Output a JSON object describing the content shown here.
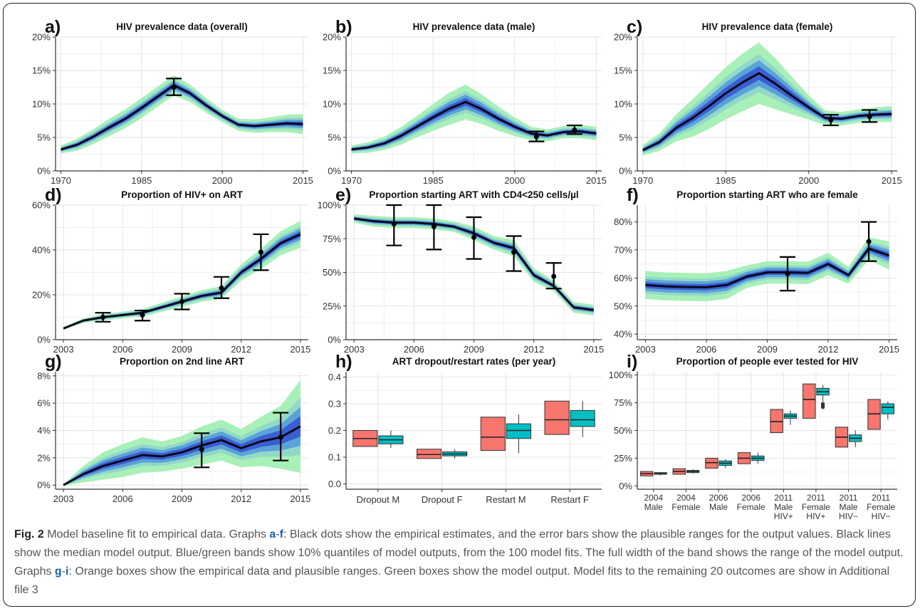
{
  "caption": {
    "fig_label": "Fig. 2",
    "part1": " Model baseline fit to empirical data. Graphs ",
    "ref1a": "a",
    "dash1": "-",
    "ref1b": "f",
    "part2": ": Black dots show the empirical estimates, and the error bars show the plausible ranges for the output values. Black lines show the median model output. Blue/green bands show 10% quantiles of model outputs, from the 100 model fits. The full width of the band shows the range of the model output. Graphs ",
    "ref2a": "g",
    "dash2": "-",
    "ref2b": "i",
    "part3": ": Orange boxes show the empirical data and plausible ranges. Green boxes show the model output. Model fits to the remaining 20 outcomes are show in Additional file 3"
  },
  "colors": {
    "median_line": "#08081e",
    "band_outer": "#a8f0b8",
    "band_inner": "#5aa3d8",
    "band_core": "#3a5fd0",
    "empirical_box": "#f8766d",
    "model_box": "#00bfc4",
    "grid": "#e3e3e3"
  },
  "chart_data": [
    {
      "id": "a",
      "letter": "a)",
      "title": "HIV prevalence data (overall)",
      "type": "line",
      "ylim": [
        0,
        20
      ],
      "yticks": [
        0,
        5,
        10,
        15,
        20
      ],
      "yticklabels": [
        "0%",
        "5%",
        "10%",
        "15%",
        "20%"
      ],
      "xlim": [
        1969,
        2016
      ],
      "xticks": [
        1970,
        1985,
        2000,
        2015
      ],
      "xticklabels": [
        "1970",
        "1985",
        "2000",
        "2015"
      ],
      "median": {
        "x": [
          1970,
          1973,
          1976,
          1979,
          1982,
          1985,
          1988,
          1991,
          1994,
          1997,
          2000,
          2003,
          2006,
          2009,
          2012,
          2015
        ],
        "y": [
          3.2,
          3.9,
          5.1,
          6.5,
          7.8,
          9.4,
          11.1,
          12.8,
          11.6,
          9.8,
          8.2,
          6.9,
          6.7,
          6.9,
          7.1,
          7.0
        ]
      },
      "band_halfwidth": [
        0.6,
        0.9,
        1.1,
        1.3,
        1.4,
        1.5,
        1.5,
        1.5,
        1.3,
        1.1,
        0.9,
        0.9,
        1.0,
        1.1,
        1.3,
        1.5
      ],
      "empirical": [
        {
          "x": 1991,
          "y": 12.5,
          "lo": 11.3,
          "hi": 13.8
        }
      ]
    },
    {
      "id": "b",
      "letter": "b)",
      "title": "HIV prevalence data (male)",
      "type": "line",
      "ylim": [
        0,
        20
      ],
      "yticks": [
        0,
        5,
        10,
        15,
        20
      ],
      "yticklabels": [
        "0%",
        "5%",
        "10%",
        "15%",
        "20%"
      ],
      "xlim": [
        1969,
        2016
      ],
      "xticks": [
        1970,
        1985,
        2000,
        2015
      ],
      "xticklabels": [
        "1970",
        "1985",
        "2000",
        "2015"
      ],
      "median": {
        "x": [
          1970,
          1973,
          1976,
          1979,
          1982,
          1985,
          1988,
          1991,
          1994,
          1997,
          2000,
          2003,
          2006,
          2009,
          2012,
          2015
        ],
        "y": [
          3.2,
          3.5,
          4.1,
          5.2,
          6.6,
          8.0,
          9.3,
          10.3,
          9.2,
          7.8,
          6.6,
          5.6,
          5.3,
          5.8,
          5.9,
          5.6
        ]
      },
      "band_halfwidth": [
        0.6,
        0.8,
        1.0,
        1.3,
        1.6,
        2.0,
        2.4,
        2.6,
        2.2,
        1.8,
        1.4,
        1.0,
        0.9,
        0.9,
        1.0,
        1.0
      ],
      "empirical": [
        {
          "x": 2004,
          "y": 5.1,
          "lo": 4.4,
          "hi": 5.9
        },
        {
          "x": 2011,
          "y": 6.1,
          "lo": 5.5,
          "hi": 6.8
        }
      ]
    },
    {
      "id": "c",
      "letter": "c)",
      "title": "HIV prevalence data (female)",
      "type": "line",
      "ylim": [
        0,
        20
      ],
      "yticks": [
        0,
        5,
        10,
        15,
        20
      ],
      "yticklabels": [
        "0%",
        "5%",
        "10%",
        "15%",
        "20%"
      ],
      "xlim": [
        1969,
        2016
      ],
      "xticks": [
        1970,
        1985,
        2000,
        2015
      ],
      "xticklabels": [
        "1970",
        "1985",
        "2000",
        "2015"
      ],
      "median": {
        "x": [
          1970,
          1973,
          1976,
          1979,
          1982,
          1985,
          1988,
          1991,
          1994,
          1997,
          2000,
          2003,
          2006,
          2009,
          2012,
          2015
        ],
        "y": [
          3.1,
          4.3,
          6.4,
          7.9,
          9.7,
          11.6,
          13.2,
          14.6,
          13.0,
          11.2,
          9.5,
          7.9,
          7.8,
          8.2,
          8.4,
          8.5
        ]
      },
      "band_halfwidth": [
        0.8,
        1.3,
        2.0,
        2.8,
        3.4,
        3.9,
        4.3,
        4.6,
        3.8,
        2.8,
        1.8,
        1.1,
        1.0,
        1.0,
        1.1,
        1.2
      ],
      "empirical": [
        {
          "x": 2004,
          "y": 7.6,
          "lo": 6.8,
          "hi": 8.4
        },
        {
          "x": 2011,
          "y": 8.1,
          "lo": 7.3,
          "hi": 9.1
        }
      ]
    },
    {
      "id": "d",
      "letter": "d)",
      "title": "Proportion of HIV+ on ART",
      "type": "line",
      "ylim": [
        0,
        60
      ],
      "yticks": [
        0,
        20,
        40,
        60
      ],
      "yticklabels": [
        "0%",
        "20%",
        "40%",
        "60%"
      ],
      "xlim": [
        2002.6,
        2015.4
      ],
      "xticks": [
        2003,
        2006,
        2009,
        2012,
        2015
      ],
      "xticklabels": [
        "2003",
        "2006",
        "2009",
        "2012",
        "2015"
      ],
      "median": {
        "x": [
          2003,
          2004,
          2005,
          2006,
          2007,
          2008,
          2009,
          2010,
          2011,
          2012,
          2013,
          2014,
          2015
        ],
        "y": [
          5.0,
          8.5,
          10.0,
          11.0,
          12.0,
          14.5,
          17.0,
          19.5,
          21.0,
          30.0,
          36.0,
          43.0,
          47.0
        ]
      },
      "band_halfwidth": [
        0.6,
        1.0,
        1.4,
        1.5,
        1.7,
        2.0,
        2.3,
        2.6,
        2.8,
        3.6,
        4.5,
        5.3,
        6.0
      ],
      "empirical": [
        {
          "x": 2005,
          "y": 10.0,
          "lo": 8.0,
          "hi": 12.0
        },
        {
          "x": 2007,
          "y": 11.0,
          "lo": 8.5,
          "hi": 13.0
        },
        {
          "x": 2009,
          "y": 17.0,
          "lo": 13.5,
          "hi": 20.5
        },
        {
          "x": 2011,
          "y": 23.0,
          "lo": 18.5,
          "hi": 28.0
        },
        {
          "x": 2013,
          "y": 39.0,
          "lo": 31.0,
          "hi": 47.0
        }
      ]
    },
    {
      "id": "e",
      "letter": "e)",
      "title": "Proportion starting ART with CD4<250 cells/µl",
      "type": "line",
      "ylim": [
        0,
        100
      ],
      "yticks": [
        0,
        25,
        50,
        75,
        100
      ],
      "yticklabels": [
        "0%",
        "25%",
        "50%",
        "75%",
        "100%"
      ],
      "xlim": [
        2002.6,
        2015.4
      ],
      "xticks": [
        2003,
        2006,
        2009,
        2012,
        2015
      ],
      "xticklabels": [
        "2003",
        "2006",
        "2009",
        "2012",
        "2015"
      ],
      "median": {
        "x": [
          2003,
          2004,
          2005,
          2006,
          2007,
          2008,
          2009,
          2010,
          2011,
          2012,
          2013,
          2014,
          2015
        ],
        "y": [
          90,
          88,
          87,
          87,
          86,
          84,
          79,
          72,
          68,
          48,
          40,
          24,
          22
        ]
      },
      "band_halfwidth": [
        3,
        4,
        4,
        4,
        4,
        4,
        5,
        5,
        6,
        5,
        4,
        4,
        4
      ],
      "empirical": [
        {
          "x": 2005,
          "y": 86,
          "lo": 70,
          "hi": 100
        },
        {
          "x": 2007,
          "y": 84,
          "lo": 67,
          "hi": 100
        },
        {
          "x": 2009,
          "y": 76,
          "lo": 60,
          "hi": 91
        },
        {
          "x": 2011,
          "y": 65,
          "lo": 51,
          "hi": 77
        },
        {
          "x": 2013,
          "y": 47,
          "lo": 38,
          "hi": 57
        }
      ]
    },
    {
      "id": "f",
      "letter": "f)",
      "title": "Proportion starting ART who are female",
      "type": "line",
      "ylim": [
        38,
        86
      ],
      "yticks": [
        40,
        50,
        60,
        70,
        80
      ],
      "yticklabels": [
        "40%",
        "50%",
        "60%",
        "70%",
        "80%"
      ],
      "xlim": [
        2002.6,
        2015.4
      ],
      "xticks": [
        2003,
        2006,
        2009,
        2012,
        2015
      ],
      "xticklabels": [
        "2003",
        "2006",
        "2009",
        "2012",
        "2015"
      ],
      "median": {
        "x": [
          2003,
          2004,
          2005,
          2006,
          2007,
          2008,
          2009,
          2010,
          2011,
          2012,
          2013,
          2014,
          2015
        ],
        "y": [
          57.5,
          57.0,
          56.8,
          56.7,
          57.5,
          60.5,
          62.0,
          62.0,
          61.8,
          65.0,
          61.0,
          70.5,
          68.0
        ]
      },
      "band_halfwidth": [
        5,
        5,
        5,
        5,
        5,
        4,
        4,
        4,
        4,
        4,
        3,
        4,
        5
      ],
      "empirical": [
        {
          "x": 2010,
          "y": 61.5,
          "lo": 55.5,
          "hi": 67.5
        },
        {
          "x": 2014,
          "y": 73,
          "lo": 66,
          "hi": 80
        }
      ]
    },
    {
      "id": "g",
      "letter": "g)",
      "title": "Proportion on 2nd line ART",
      "type": "line",
      "ylim": [
        -0.3,
        8.3
      ],
      "yticks": [
        0,
        2,
        4,
        6,
        8
      ],
      "yticklabels": [
        "0%",
        "2%",
        "4%",
        "6%",
        "8%"
      ],
      "xlim": [
        2002.6,
        2015.4
      ],
      "xticks": [
        2003,
        2006,
        2009,
        2012,
        2015
      ],
      "xticklabels": [
        "2003",
        "2006",
        "2009",
        "2012",
        "2015"
      ],
      "median": {
        "x": [
          2003,
          2004,
          2005,
          2006,
          2007,
          2008,
          2009,
          2010,
          2011,
          2012,
          2013,
          2014,
          2015
        ],
        "y": [
          0.0,
          0.8,
          1.4,
          1.8,
          2.2,
          2.1,
          2.4,
          2.9,
          3.3,
          2.7,
          3.2,
          3.5,
          4.3
        ]
      },
      "band_halfwidth": [
        0.05,
        0.6,
        1.0,
        1.2,
        1.3,
        1.1,
        1.2,
        1.4,
        1.5,
        1.4,
        1.8,
        2.3,
        3.4
      ],
      "empirical": [
        {
          "x": 2010,
          "y": 2.6,
          "lo": 1.3,
          "hi": 3.8
        },
        {
          "x": 2014,
          "y": 3.5,
          "lo": 1.8,
          "hi": 5.3
        }
      ]
    },
    {
      "id": "h",
      "letter": "h)",
      "title": "ART dropout/restart rates (per year)",
      "type": "box",
      "ylim": [
        -0.02,
        0.42
      ],
      "yticks": [
        0.0,
        0.1,
        0.2,
        0.3,
        0.4
      ],
      "yticklabels": [
        "0.0",
        "0.1",
        "0.2",
        "0.3",
        "0.4"
      ],
      "categories": [
        [
          "Dropout M"
        ],
        [
          "Dropout F"
        ],
        [
          "Restart M"
        ],
        [
          "Restart F"
        ]
      ],
      "boxes": [
        {
          "cat": 0,
          "group": "empirical",
          "min": 0.14,
          "q1": 0.14,
          "median": 0.17,
          "q3": 0.2,
          "max": 0.2
        },
        {
          "cat": 0,
          "group": "model",
          "min": 0.135,
          "q1": 0.15,
          "median": 0.165,
          "q3": 0.18,
          "max": 0.2
        },
        {
          "cat": 1,
          "group": "empirical",
          "min": 0.095,
          "q1": 0.095,
          "median": 0.11,
          "q3": 0.13,
          "max": 0.13
        },
        {
          "cat": 1,
          "group": "model",
          "min": 0.095,
          "q1": 0.105,
          "median": 0.112,
          "q3": 0.12,
          "max": 0.13
        },
        {
          "cat": 2,
          "group": "empirical",
          "min": 0.125,
          "q1": 0.125,
          "median": 0.175,
          "q3": 0.25,
          "max": 0.25
        },
        {
          "cat": 2,
          "group": "model",
          "min": 0.115,
          "q1": 0.17,
          "median": 0.2,
          "q3": 0.225,
          "max": 0.26
        },
        {
          "cat": 3,
          "group": "empirical",
          "min": 0.185,
          "q1": 0.185,
          "median": 0.24,
          "q3": 0.31,
          "max": 0.31
        },
        {
          "cat": 3,
          "group": "model",
          "min": 0.175,
          "q1": 0.215,
          "median": 0.24,
          "q3": 0.275,
          "max": 0.31
        }
      ]
    },
    {
      "id": "i",
      "letter": "i)",
      "title": "Proportion of people ever tested for HIV",
      "type": "box",
      "ylim": [
        -3,
        103
      ],
      "yticks": [
        0,
        25,
        50,
        75,
        100
      ],
      "yticklabels": [
        "0%",
        "25%",
        "50%",
        "75%",
        "100%"
      ],
      "categories": [
        [
          "2004",
          "Male"
        ],
        [
          "2004",
          "Female"
        ],
        [
          "2006",
          "Male"
        ],
        [
          "2006",
          "Female"
        ],
        [
          "2011",
          "Male",
          "HIV+"
        ],
        [
          "2011",
          "Female",
          "HIV+"
        ],
        [
          "2011",
          "Male",
          "HIV−"
        ],
        [
          "2011",
          "Female",
          "HIV−"
        ]
      ],
      "boxes": [
        {
          "cat": 0,
          "group": "empirical",
          "min": 9,
          "q1": 9,
          "median": 11,
          "q3": 13,
          "max": 13
        },
        {
          "cat": 0,
          "group": "model",
          "min": 9.5,
          "q1": 10.5,
          "median": 11,
          "q3": 12,
          "max": 12.5
        },
        {
          "cat": 1,
          "group": "empirical",
          "min": 10.5,
          "q1": 10.5,
          "median": 13,
          "q3": 15.5,
          "max": 15.5
        },
        {
          "cat": 1,
          "group": "model",
          "min": 11,
          "q1": 12,
          "median": 13,
          "q3": 14,
          "max": 15
        },
        {
          "cat": 2,
          "group": "empirical",
          "min": 16,
          "q1": 16,
          "median": 21,
          "q3": 25,
          "max": 25
        },
        {
          "cat": 2,
          "group": "model",
          "min": 16,
          "q1": 18.5,
          "median": 20.5,
          "q3": 22.5,
          "max": 24
        },
        {
          "cat": 3,
          "group": "empirical",
          "min": 20,
          "q1": 20,
          "median": 25,
          "q3": 30,
          "max": 30
        },
        {
          "cat": 3,
          "group": "model",
          "min": 20,
          "q1": 23,
          "median": 25,
          "q3": 27,
          "max": 30
        },
        {
          "cat": 4,
          "group": "empirical",
          "min": 48,
          "q1": 48,
          "median": 58,
          "q3": 69,
          "max": 69
        },
        {
          "cat": 4,
          "group": "model",
          "min": 55,
          "q1": 61,
          "median": 63,
          "q3": 65,
          "max": 68
        },
        {
          "cat": 5,
          "group": "empirical",
          "min": 61,
          "q1": 61,
          "median": 78,
          "q3": 92,
          "max": 92
        },
        {
          "cat": 5,
          "group": "model",
          "min": 76,
          "q1": 82,
          "median": 85,
          "q3": 88,
          "max": 91,
          "outliers": [
            71,
            72,
            73,
            74
          ]
        },
        {
          "cat": 6,
          "group": "empirical",
          "min": 35,
          "q1": 35,
          "median": 44,
          "q3": 53,
          "max": 53
        },
        {
          "cat": 6,
          "group": "model",
          "min": 35,
          "q1": 40,
          "median": 43,
          "q3": 46,
          "max": 50
        },
        {
          "cat": 7,
          "group": "empirical",
          "min": 51,
          "q1": 51,
          "median": 65,
          "q3": 78,
          "max": 78
        },
        {
          "cat": 7,
          "group": "model",
          "min": 60,
          "q1": 65,
          "median": 71,
          "q3": 74,
          "max": 76
        }
      ]
    }
  ]
}
